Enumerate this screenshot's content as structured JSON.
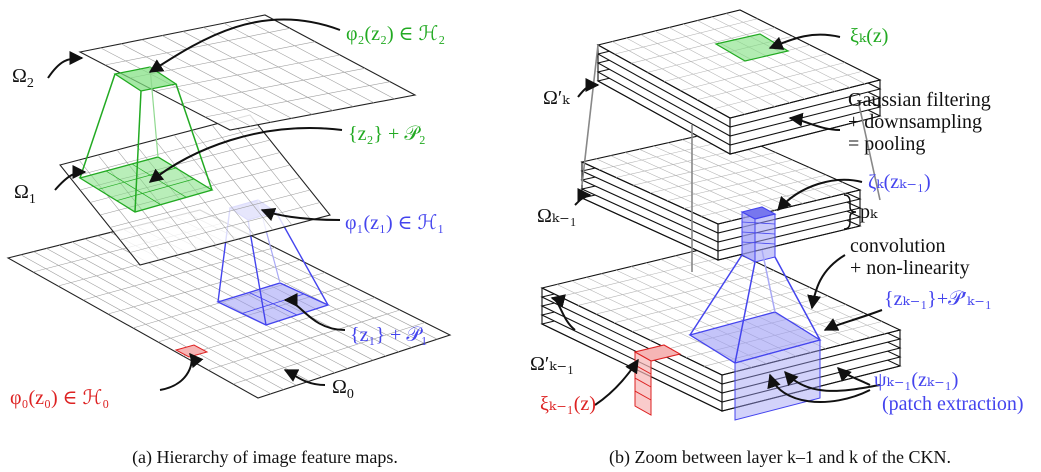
{
  "colors": {
    "green": "#22aa22",
    "blue": "#4444ee",
    "red": "#dd2222",
    "black": "#111111",
    "gray": "#888888"
  },
  "panel_a": {
    "omega2": "Ω",
    "omega2_sub": "2",
    "omega1": "Ω",
    "omega1_sub": "1",
    "omega0": "Ω",
    "omega0_sub": "0",
    "phi2": "φ₂(z₂) ∈ ℋ₂",
    "z2P2": "{z₂} + 𝒫₂",
    "phi1": "φ₁(z₁) ∈ ℋ₁",
    "z1P1": "{z₁} + 𝒫₁",
    "phi0": "φ₀(z₀) ∈ ℋ₀",
    "caption": "(a) Hierarchy of image feature maps."
  },
  "panel_b": {
    "xi_k": "ξₖ(z)",
    "omega_k_prime": "Ω′ₖ",
    "gauss1": "Gaussian filtering",
    "gauss2": "+ downsampling",
    "gauss3": "= pooling",
    "zeta": "ζₖ(zₖ₋₁)",
    "omega_km1": "Ωₖ₋₁",
    "pk": "pₖ",
    "conv1": "convolution",
    "conv2": "+ non-linearity",
    "zP": "{zₖ₋₁}+𝒫′ₖ₋₁",
    "omega_km1_prime": "Ω′ₖ₋₁",
    "psi": "ψₖ₋₁(zₖ₋₁)",
    "patch": "(patch extraction)",
    "xi_km1": "ξₖ₋₁(z)",
    "caption": "(b) Zoom between layer k–1 and k of the CKN."
  }
}
